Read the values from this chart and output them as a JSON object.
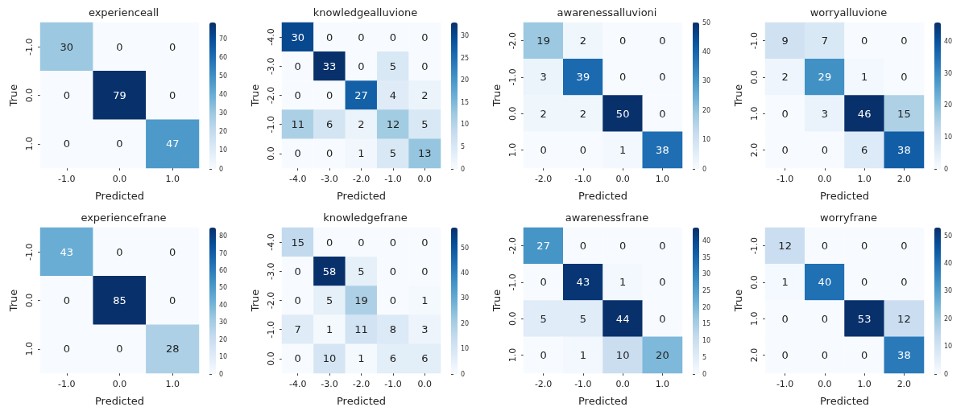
{
  "chart_data": [
    {
      "type": "heatmap",
      "title": "experienceall",
      "xlabel": "Predicted",
      "ylabel": "True",
      "categories": [
        "-1.0",
        "0.0",
        "1.0"
      ],
      "y_categories": [
        "-1.0",
        "0.0",
        "1.0"
      ],
      "cells": [
        [
          30,
          0,
          0
        ],
        [
          0,
          79,
          0
        ],
        [
          0,
          0,
          47
        ]
      ],
      "clim": [
        0,
        79
      ],
      "cticks": [
        0,
        10,
        20,
        30,
        40,
        50,
        60,
        70
      ],
      "data_labels": true
    },
    {
      "type": "heatmap",
      "title": "knowledgealluvione",
      "xlabel": "Predicted",
      "ylabel": "True",
      "categories": [
        "-4.0",
        "-3.0",
        "-2.0",
        "-1.0",
        "0.0"
      ],
      "y_categories": [
        "-4.0",
        "-3.0",
        "-2.0",
        "-1.0",
        "0.0"
      ],
      "cells": [
        [
          30,
          0,
          0,
          0,
          0
        ],
        [
          0,
          33,
          0,
          5,
          0
        ],
        [
          0,
          0,
          27,
          4,
          2
        ],
        [
          11,
          6,
          2,
          12,
          5
        ],
        [
          0,
          0,
          1,
          5,
          13
        ]
      ],
      "clim": [
        0,
        33
      ],
      "cticks": [
        0,
        5,
        10,
        15,
        20,
        25,
        30
      ],
      "data_labels": true
    },
    {
      "type": "heatmap",
      "title": "awarenessalluvioni",
      "xlabel": "Predicted",
      "ylabel": "True",
      "categories": [
        "-2.0",
        "-1.0",
        "0.0",
        "1.0"
      ],
      "y_categories": [
        "-2.0",
        "-1.0",
        "0.0",
        "1.0"
      ],
      "cells": [
        [
          19,
          2,
          0,
          0
        ],
        [
          3,
          39,
          0,
          0
        ],
        [
          2,
          2,
          50,
          0
        ],
        [
          0,
          0,
          1,
          38
        ]
      ],
      "clim": [
        0,
        50
      ],
      "cticks": [
        0,
        10,
        20,
        30,
        40,
        50
      ],
      "data_labels": true
    },
    {
      "type": "heatmap",
      "title": "worryalluvione",
      "xlabel": "Predicted",
      "ylabel": "True",
      "categories": [
        "-1.0",
        "0.0",
        "1.0",
        "2.0"
      ],
      "y_categories": [
        "-1.0",
        "0.0",
        "1.0",
        "2.0"
      ],
      "cells": [
        [
          9,
          7,
          0,
          0
        ],
        [
          2,
          29,
          1,
          0
        ],
        [
          0,
          3,
          46,
          15
        ],
        [
          0,
          0,
          6,
          38
        ]
      ],
      "clim": [
        0,
        46
      ],
      "cticks": [
        0,
        10,
        20,
        30,
        40
      ],
      "data_labels": true
    },
    {
      "type": "heatmap",
      "title": "experiencefrane",
      "xlabel": "Predicted",
      "ylabel": "True",
      "categories": [
        "-1.0",
        "0.0",
        "1.0"
      ],
      "y_categories": [
        "-1.0",
        "0.0",
        "1.0"
      ],
      "cells": [
        [
          43,
          0,
          0
        ],
        [
          0,
          85,
          0
        ],
        [
          0,
          0,
          28
        ]
      ],
      "clim": [
        0,
        85
      ],
      "cticks": [
        0,
        10,
        20,
        30,
        40,
        50,
        60,
        70,
        80
      ],
      "data_labels": true
    },
    {
      "type": "heatmap",
      "title": "knowledgefrane",
      "xlabel": "Predicted",
      "ylabel": "True",
      "categories": [
        "-4.0",
        "-3.0",
        "-2.0",
        "-1.0",
        "0.0"
      ],
      "y_categories": [
        "-4.0",
        "-3.0",
        "-2.0",
        "-1.0",
        "0.0"
      ],
      "cells": [
        [
          15,
          0,
          0,
          0,
          0
        ],
        [
          0,
          58,
          5,
          0,
          0
        ],
        [
          0,
          5,
          19,
          0,
          1
        ],
        [
          7,
          1,
          11,
          8,
          3
        ],
        [
          0,
          10,
          1,
          6,
          6
        ]
      ],
      "clim": [
        0,
        58
      ],
      "cticks": [
        0,
        10,
        20,
        30,
        40,
        50
      ],
      "data_labels": true
    },
    {
      "type": "heatmap",
      "title": "awarenessfrane",
      "xlabel": "Predicted",
      "ylabel": "True",
      "categories": [
        "-2.0",
        "-1.0",
        "0.0",
        "1.0"
      ],
      "y_categories": [
        "-2.0",
        "-1.0",
        "0.0",
        "1.0"
      ],
      "cells": [
        [
          27,
          0,
          0,
          0
        ],
        [
          0,
          43,
          1,
          0
        ],
        [
          5,
          5,
          44,
          0
        ],
        [
          0,
          1,
          10,
          20
        ]
      ],
      "clim": [
        0,
        44
      ],
      "cticks": [
        0,
        5,
        10,
        15,
        20,
        25,
        30,
        35,
        40
      ],
      "data_labels": true
    },
    {
      "type": "heatmap",
      "title": "worryfrane",
      "xlabel": "Predicted",
      "ylabel": "True",
      "categories": [
        "-1.0",
        "0.0",
        "1.0",
        "2.0"
      ],
      "y_categories": [
        "-1.0",
        "0.0",
        "1.0",
        "2.0"
      ],
      "cells": [
        [
          12,
          0,
          0,
          0
        ],
        [
          1,
          40,
          0,
          0
        ],
        [
          0,
          0,
          53,
          12
        ],
        [
          0,
          0,
          0,
          38
        ]
      ],
      "clim": [
        0,
        53
      ],
      "cticks": [
        0,
        10,
        20,
        30,
        40,
        50
      ],
      "data_labels": true
    }
  ]
}
